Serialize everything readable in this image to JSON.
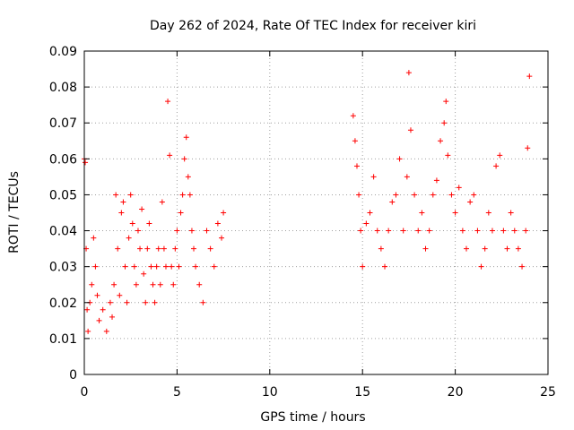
{
  "chart_data": {
    "type": "scatter",
    "title": "Day 262 of 2024, Rate Of TEC Index for receiver kiri",
    "xlabel": "GPS time / hours",
    "ylabel": "ROTI / TECUs",
    "xlim": [
      0,
      25
    ],
    "ylim": [
      0,
      0.09
    ],
    "x_ticks": [
      0,
      5,
      10,
      15,
      20,
      25
    ],
    "x_tick_labels": [
      "0",
      "5",
      "10",
      "15",
      "20",
      "25"
    ],
    "y_ticks": [
      0,
      0.01,
      0.02,
      0.03,
      0.04,
      0.05,
      0.06,
      0.07,
      0.08,
      0.09
    ],
    "y_tick_labels": [
      "0",
      "0.01",
      "0.02",
      "0.03",
      "0.04",
      "0.05",
      "0.06",
      "0.07",
      "0.08",
      "0.09"
    ],
    "grid": true,
    "marker": "+",
    "color": "#ff0000",
    "series": [
      {
        "name": "ROTI",
        "x": [
          0.0,
          0.05,
          0.1,
          0.15,
          0.2,
          0.3,
          0.4,
          0.5,
          0.6,
          0.7,
          0.8,
          1.0,
          1.2,
          1.4,
          1.5,
          1.6,
          1.7,
          1.8,
          1.9,
          2.0,
          2.1,
          2.2,
          2.3,
          2.4,
          2.5,
          2.6,
          2.7,
          2.8,
          2.9,
          3.0,
          3.1,
          3.2,
          3.3,
          3.4,
          3.5,
          3.6,
          3.7,
          3.8,
          3.9,
          4.0,
          4.1,
          4.2,
          4.3,
          4.4,
          4.5,
          4.6,
          4.7,
          4.8,
          4.9,
          5.0,
          5.1,
          5.2,
          5.3,
          5.4,
          5.5,
          5.6,
          5.7,
          5.8,
          5.9,
          6.0,
          6.2,
          6.4,
          6.6,
          6.8,
          7.0,
          7.2,
          7.4,
          7.5,
          14.5,
          14.6,
          14.7,
          14.8,
          14.9,
          15.0,
          15.2,
          15.4,
          15.6,
          15.8,
          16.0,
          16.2,
          16.4,
          16.6,
          16.8,
          17.0,
          17.2,
          17.4,
          17.5,
          17.6,
          17.8,
          18.0,
          18.2,
          18.4,
          18.6,
          18.8,
          19.0,
          19.2,
          19.4,
          19.5,
          19.6,
          19.8,
          20.0,
          20.2,
          20.4,
          20.6,
          20.8,
          21.0,
          21.2,
          21.4,
          21.6,
          21.8,
          22.0,
          22.2,
          22.4,
          22.6,
          22.8,
          23.0,
          23.2,
          23.4,
          23.6,
          23.8,
          23.9,
          24.0
        ],
        "y": [
          0.06,
          0.059,
          0.035,
          0.018,
          0.012,
          0.02,
          0.025,
          0.038,
          0.03,
          0.022,
          0.015,
          0.018,
          0.012,
          0.02,
          0.016,
          0.025,
          0.05,
          0.035,
          0.022,
          0.045,
          0.048,
          0.03,
          0.02,
          0.038,
          0.05,
          0.042,
          0.03,
          0.025,
          0.04,
          0.035,
          0.046,
          0.028,
          0.02,
          0.035,
          0.042,
          0.03,
          0.025,
          0.02,
          0.03,
          0.035,
          0.025,
          0.048,
          0.035,
          0.03,
          0.076,
          0.061,
          0.03,
          0.025,
          0.035,
          0.04,
          0.03,
          0.045,
          0.05,
          0.06,
          0.066,
          0.055,
          0.05,
          0.04,
          0.035,
          0.03,
          0.025,
          0.02,
          0.04,
          0.035,
          0.03,
          0.042,
          0.038,
          0.045,
          0.072,
          0.065,
          0.058,
          0.05,
          0.04,
          0.03,
          0.042,
          0.045,
          0.055,
          0.04,
          0.035,
          0.03,
          0.04,
          0.048,
          0.05,
          0.06,
          0.04,
          0.055,
          0.084,
          0.068,
          0.05,
          0.04,
          0.045,
          0.035,
          0.04,
          0.05,
          0.054,
          0.065,
          0.07,
          0.076,
          0.061,
          0.05,
          0.045,
          0.052,
          0.04,
          0.035,
          0.048,
          0.05,
          0.04,
          0.03,
          0.035,
          0.045,
          0.04,
          0.058,
          0.061,
          0.04,
          0.035,
          0.045,
          0.04,
          0.035,
          0.03,
          0.04,
          0.063,
          0.083
        ]
      }
    ]
  }
}
